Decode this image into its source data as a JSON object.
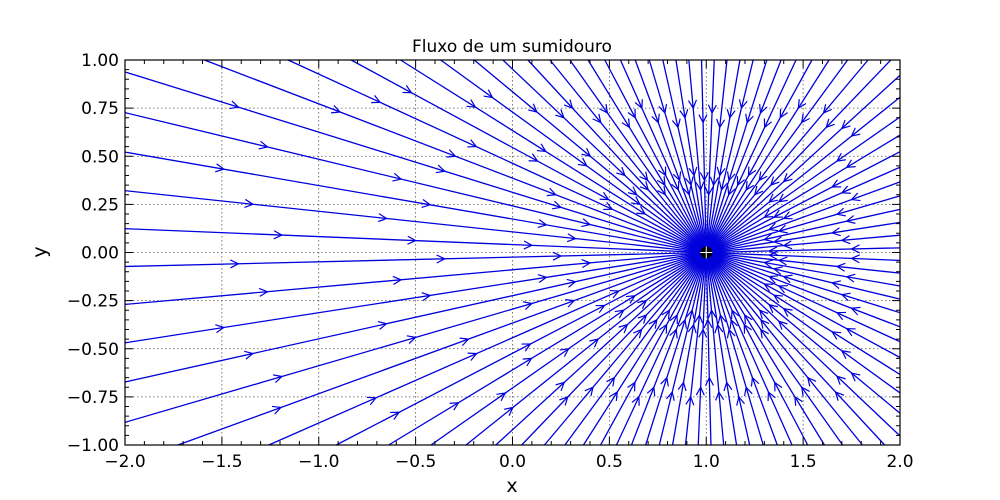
{
  "chart_data": {
    "type": "streamplot",
    "title": "Fluxo de um sumidouro",
    "xlabel": "x",
    "ylabel": "y",
    "xlim": [
      -2.0,
      2.0
    ],
    "ylim": [
      -1.0,
      1.0
    ],
    "x_ticks": [
      -2.0,
      -1.5,
      -1.0,
      -0.5,
      0.0,
      0.5,
      1.0,
      1.5,
      2.0
    ],
    "y_ticks": [
      -1.0,
      -0.75,
      -0.5,
      -0.25,
      0.0,
      0.25,
      0.5,
      0.75,
      1.0
    ],
    "x_tick_labels": [
      "−2.0",
      "−1.5",
      "−1.0",
      "−0.5",
      "0.0",
      "0.5",
      "1.0",
      "1.5",
      "2.0"
    ],
    "y_tick_labels": [
      "−1.00",
      "−0.75",
      "−0.50",
      "−0.25",
      "0.00",
      "0.25",
      "0.50",
      "0.75",
      "1.00"
    ],
    "grid": true,
    "flow_color": "#0000dd",
    "sink": {
      "x": 1.0,
      "y": 0.0,
      "color": "#000000"
    }
  }
}
